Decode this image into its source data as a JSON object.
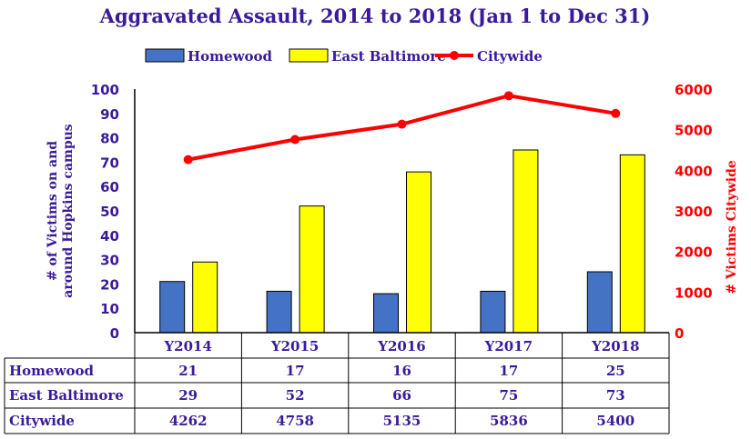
{
  "chart_data": {
    "type": "bar",
    "title": "Aggravated Assault, 2014 to 2018 (Jan 1 to Dec 31)",
    "categories": [
      "Y2014",
      "Y2015",
      "Y2016",
      "Y2017",
      "Y2018"
    ],
    "series": [
      {
        "name": "Homewood",
        "type": "bar",
        "axis": "left",
        "color": "#4472c4",
        "values": [
          21,
          17,
          16,
          17,
          25
        ]
      },
      {
        "name": "East Baltimore",
        "type": "bar",
        "axis": "left",
        "color": "#ffff00",
        "values": [
          29,
          52,
          66,
          75,
          73
        ]
      },
      {
        "name": "Citywide",
        "type": "line",
        "axis": "right",
        "color": "#ff0000",
        "values": [
          4262,
          4758,
          5135,
          5836,
          5400
        ]
      }
    ],
    "ylabel": "# of Victims on and around Hopkins campus",
    "ylabel_lines": [
      "# of Victims on and",
      "around Hopkins campus"
    ],
    "y2label": "# Victims Citywide",
    "ylim": [
      0,
      100
    ],
    "y2lim": [
      0,
      6000
    ],
    "yticks": [
      "0",
      "10",
      "20",
      "30",
      "40",
      "50",
      "60",
      "70",
      "80",
      "90",
      "100"
    ],
    "y2ticks": [
      "0",
      "1000",
      "2000",
      "3000",
      "4000",
      "5000",
      "6000"
    ],
    "legend": "top",
    "grid": false,
    "data_table": {
      "rows": [
        {
          "label": "Homewood",
          "values": [
            "21",
            "17",
            "16",
            "17",
            "25"
          ]
        },
        {
          "label": "East Baltimore",
          "values": [
            "29",
            "52",
            "66",
            "75",
            "73"
          ]
        },
        {
          "label": "Citywide",
          "values": [
            "4262",
            "4758",
            "5135",
            "5836",
            "5400"
          ]
        }
      ]
    },
    "colors": {
      "text": "#3a1a9a",
      "citywide": "#ff0000",
      "title": "#3a1a9a"
    }
  }
}
